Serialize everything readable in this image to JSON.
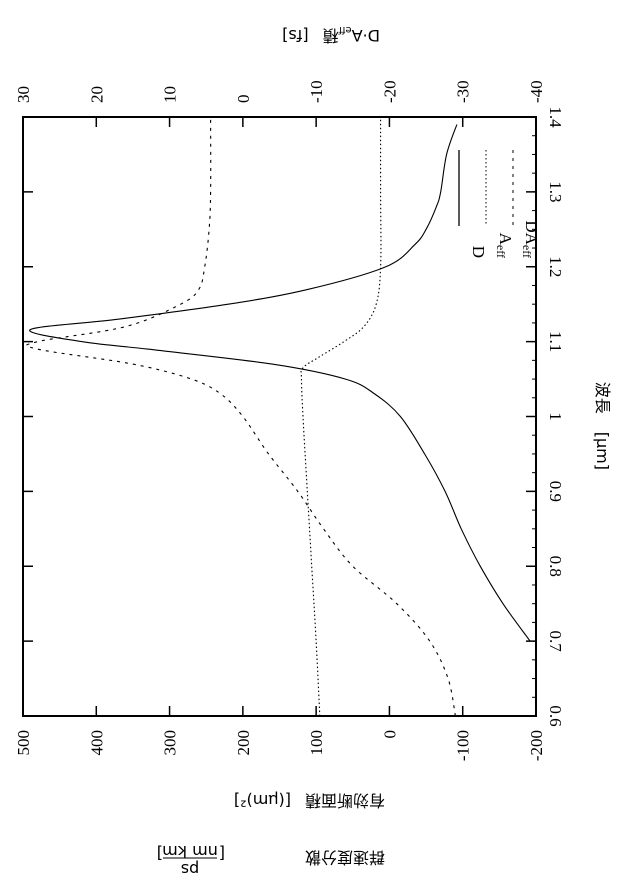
{
  "chart_data": {
    "type": "line",
    "orientation_note_visible": "figure rotated 90 degrees on page",
    "title": "",
    "xlabel": "波長 [μm]",
    "ylabel_left": [
      "群速度分散 [ps/(nm km)]",
      "有効断面積 [(μm)²]"
    ],
    "ylabel_right": "D·Aeff積 [fs]",
    "xlim": [
      0.6,
      1.4
    ],
    "ylim_left": [
      -200,
      500
    ],
    "ylim_right": [
      -40,
      30
    ],
    "x_ticks": [
      "0.6",
      "0.7",
      "0.8",
      "0.9",
      "1",
      "1.1",
      "1.2",
      "1.3",
      "1.4"
    ],
    "y_left_ticks": [
      "500",
      "400",
      "300",
      "200",
      "100",
      "0",
      "-100",
      "-200"
    ],
    "y_right_ticks": [
      "30",
      "20",
      "10",
      "0",
      "-10",
      "-20",
      "-30",
      "-40"
    ],
    "legend": [
      "D",
      "A_eff",
      "DA_eff"
    ],
    "grid": false,
    "series": [
      {
        "name": "D",
        "axis": "left",
        "style": "solid",
        "x": [
          0.7,
          0.75,
          0.8,
          0.85,
          0.9,
          0.95,
          1.0,
          1.03,
          1.05,
          1.07,
          1.09,
          1.1,
          1.116,
          1.13,
          1.15,
          1.17,
          1.2,
          1.23,
          1.25,
          1.28,
          1.3,
          1.35,
          1.39
        ],
        "values": [
          -192,
          -155,
          -124,
          -98,
          -76,
          -48,
          -15,
          20,
          60,
          160,
          330,
          420,
          490,
          370,
          220,
          110,
          5,
          -35,
          -50,
          -64,
          -70,
          -78,
          -92
        ]
      },
      {
        "name": "A_eff",
        "axis": "left",
        "style": "dotted",
        "x": [
          0.6,
          0.7,
          0.8,
          0.9,
          1.0,
          1.05,
          1.065,
          1.08,
          1.1,
          1.12,
          1.15,
          1.2,
          1.3,
          1.4
        ],
        "values": [
          95,
          100,
          106,
          112,
          118,
          120,
          118,
          95,
          62,
          35,
          18,
          12,
          12,
          12
        ]
      },
      {
        "name": "DA_eff",
        "axis": "right",
        "style": "dashed",
        "x": [
          0.6,
          0.65,
          0.7,
          0.75,
          0.8,
          0.85,
          0.9,
          0.95,
          1.0,
          1.03,
          1.05,
          1.07,
          1.09,
          1.1,
          1.12,
          1.15,
          1.17,
          1.2,
          1.25,
          1.3,
          1.4
        ],
        "values": [
          -29,
          -28,
          -25.5,
          -21,
          -15,
          -11,
          -7.5,
          -3.5,
          0,
          3,
          7,
          15,
          28,
          28,
          16,
          8.5,
          6,
          5.2,
          4.6,
          4.4,
          4.4
        ]
      }
    ]
  },
  "labels": {
    "top_axis_title": "D·A",
    "top_axis_title_sub": "eff",
    "top_axis_title_suffix": "積",
    "top_axis_unit": "[fs]",
    "right_axis_title": "波長",
    "right_axis_unit": "[μm]",
    "bottom_axis_title_1": "有効断面積",
    "bottom_axis_unit_1": "[(μm)²]",
    "bottom_axis_title_2": "群速度分散",
    "bottom_axis_unit_2_num": "ps",
    "bottom_axis_unit_2_den": "nm km",
    "legend_D": "D",
    "legend_A": "A",
    "legend_A_sub": "eff",
    "legend_DA": "DA",
    "legend_DA_sub": "eff"
  }
}
